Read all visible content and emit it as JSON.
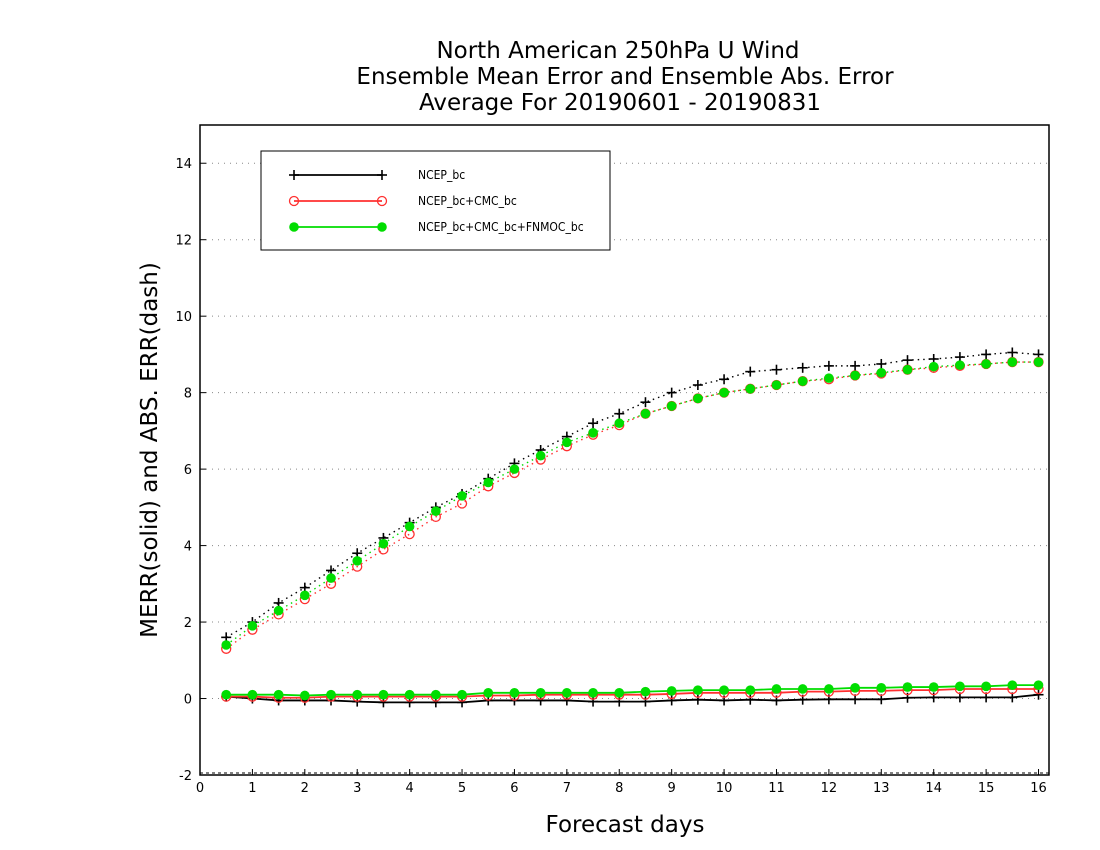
{
  "chart_data": {
    "type": "line",
    "title": [
      "North American 250hPa U Wind",
      "Ensemble Mean Error and Ensemble Abs. Error",
      "Average For 20190601 - 20190831"
    ],
    "xlabel": "Forecast days",
    "ylabel": "MERR(solid) and ABS. ERR(dash)",
    "xlim": [
      0,
      16.2
    ],
    "ylim": [
      -2,
      15
    ],
    "xticks": [
      "0",
      "1",
      "2",
      "3",
      "4",
      "5",
      "6",
      "7",
      "8",
      "9",
      "10",
      "11",
      "12",
      "13",
      "14",
      "15",
      "16"
    ],
    "yticks": [
      "-2",
      "0",
      "2",
      "4",
      "6",
      "8",
      "10",
      "12",
      "14"
    ],
    "grid": "horizontal dotted",
    "legend_position": "top-left",
    "x": [
      0.5,
      1,
      1.5,
      2,
      2.5,
      3,
      3.5,
      4,
      4.5,
      5,
      5.5,
      6,
      6.5,
      7,
      7.5,
      8,
      8.5,
      9,
      9.5,
      10,
      10.5,
      11,
      11.5,
      12,
      12.5,
      13,
      13.5,
      14,
      14.5,
      15,
      15.5,
      16
    ],
    "series": [
      {
        "name": "NCEP_bc",
        "color": "#000000",
        "marker": "plus",
        "merr": [
          0.05,
          0.0,
          -0.05,
          -0.05,
          -0.05,
          -0.08,
          -0.1,
          -0.1,
          -0.1,
          -0.1,
          -0.05,
          -0.05,
          -0.05,
          -0.05,
          -0.08,
          -0.08,
          -0.08,
          -0.05,
          -0.03,
          -0.05,
          -0.03,
          -0.05,
          -0.03,
          -0.02,
          -0.02,
          -0.02,
          0.02,
          0.03,
          0.03,
          0.03,
          0.03,
          0.1
        ],
        "abs_err": [
          1.6,
          2.0,
          2.5,
          2.9,
          3.35,
          3.8,
          4.2,
          4.6,
          5.0,
          5.35,
          5.75,
          6.15,
          6.5,
          6.85,
          7.2,
          7.45,
          7.75,
          8.0,
          8.2,
          8.35,
          8.55,
          8.6,
          8.65,
          8.7,
          8.7,
          8.75,
          8.85,
          8.88,
          8.93,
          9.0,
          9.05,
          9.0
        ]
      },
      {
        "name": "NCEP_bc+CMC_bc",
        "color": "#ff3030",
        "marker": "open-circle",
        "merr": [
          0.05,
          0.05,
          0.02,
          0.02,
          0.05,
          0.05,
          0.05,
          0.05,
          0.05,
          0.05,
          0.08,
          0.08,
          0.1,
          0.1,
          0.1,
          0.1,
          0.1,
          0.12,
          0.15,
          0.15,
          0.15,
          0.15,
          0.18,
          0.18,
          0.2,
          0.2,
          0.22,
          0.22,
          0.25,
          0.25,
          0.25,
          0.25
        ],
        "abs_err": [
          1.3,
          1.8,
          2.2,
          2.6,
          3.0,
          3.45,
          3.9,
          4.3,
          4.75,
          5.1,
          5.55,
          5.9,
          6.25,
          6.6,
          6.9,
          7.15,
          7.45,
          7.65,
          7.85,
          8.0,
          8.1,
          8.2,
          8.3,
          8.35,
          8.45,
          8.5,
          8.6,
          8.65,
          8.7,
          8.75,
          8.8,
          8.8
        ]
      },
      {
        "name": "NCEP_bc+CMC_bc+FNMOC_bc",
        "color": "#00dd00",
        "marker": "filled-circle",
        "merr": [
          0.1,
          0.1,
          0.1,
          0.08,
          0.1,
          0.1,
          0.1,
          0.1,
          0.1,
          0.1,
          0.15,
          0.15,
          0.15,
          0.15,
          0.15,
          0.15,
          0.18,
          0.2,
          0.22,
          0.22,
          0.22,
          0.25,
          0.25,
          0.25,
          0.28,
          0.28,
          0.3,
          0.3,
          0.32,
          0.32,
          0.35,
          0.35
        ],
        "abs_err": [
          1.4,
          1.9,
          2.3,
          2.7,
          3.15,
          3.6,
          4.05,
          4.5,
          4.9,
          5.3,
          5.65,
          6.0,
          6.35,
          6.7,
          6.95,
          7.2,
          7.45,
          7.65,
          7.85,
          8.0,
          8.1,
          8.2,
          8.3,
          8.38,
          8.45,
          8.52,
          8.6,
          8.68,
          8.72,
          8.75,
          8.8,
          8.8
        ]
      }
    ]
  }
}
